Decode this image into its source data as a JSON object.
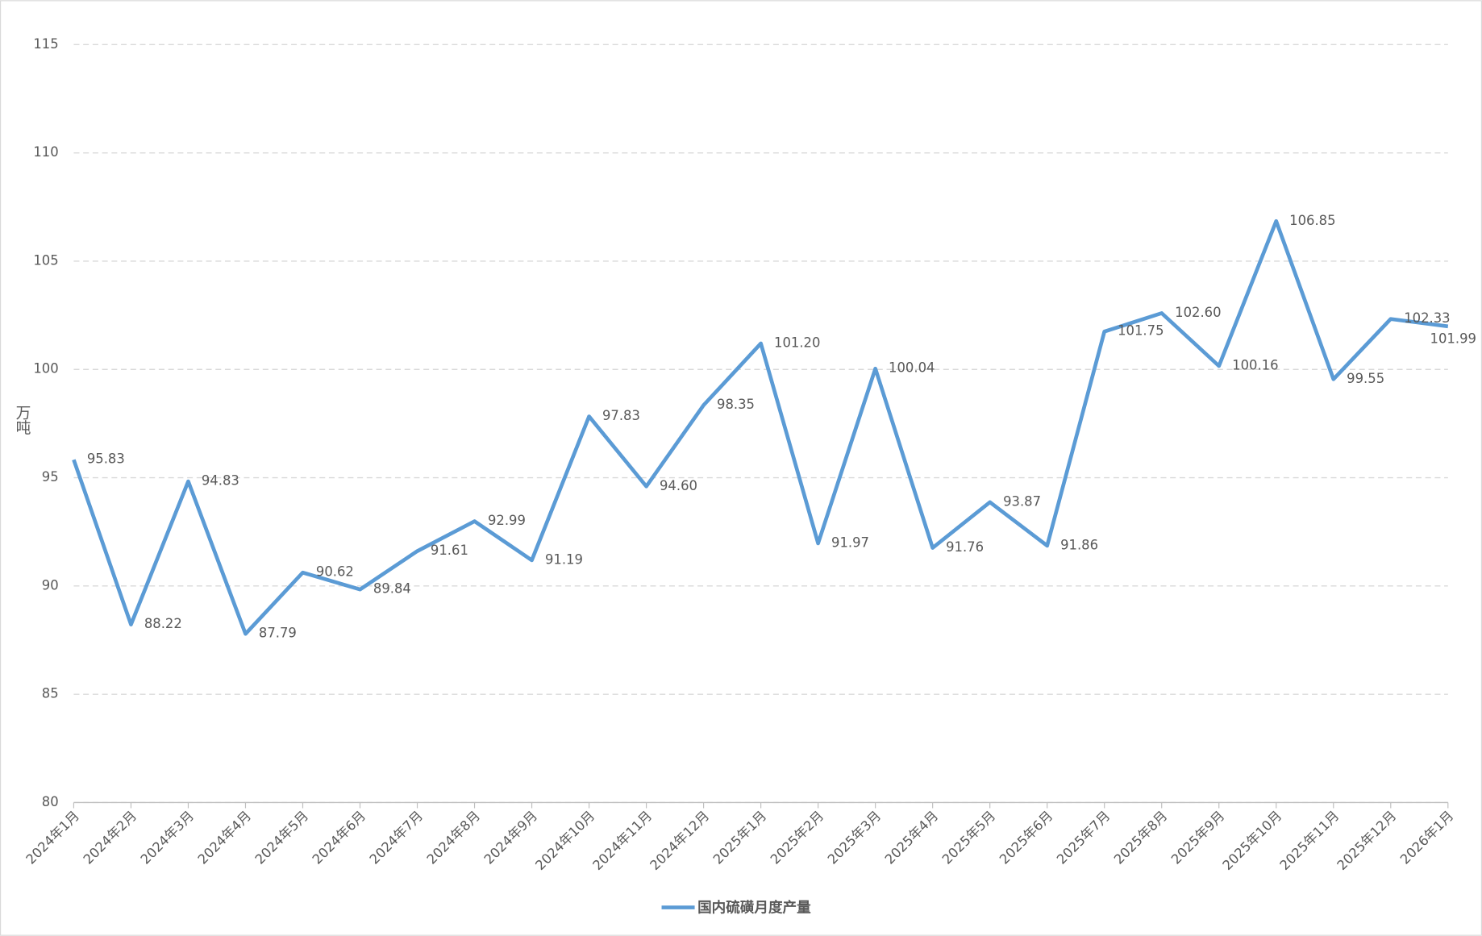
{
  "chart_data": {
    "type": "line",
    "y_label": "万吨",
    "categories": [
      "2024年1月",
      "2024年2月",
      "2024年3月",
      "2024年4月",
      "2024年5月",
      "2024年6月",
      "2024年7月",
      "2024年8月",
      "2024年9月",
      "2024年10月",
      "2024年11月",
      "2024年12月",
      "2025年1月",
      "2025年2月",
      "2025年3月",
      "2025年4月",
      "2025年5月",
      "2025年6月",
      "2025年7月",
      "2025年8月",
      "2025年9月",
      "2025年10月",
      "2025年11月",
      "2025年12月",
      "2026年1月"
    ],
    "series": [
      {
        "name": "国内硫磺月度产量",
        "color": "#5b9bd5",
        "values": [
          95.83,
          88.22,
          94.83,
          87.79,
          90.62,
          89.84,
          91.61,
          92.99,
          91.19,
          97.83,
          94.6,
          98.35,
          101.2,
          91.97,
          100.04,
          91.76,
          93.87,
          91.86,
          101.75,
          102.6,
          100.16,
          106.85,
          99.55,
          102.33,
          101.99
        ],
        "value_labels": [
          "95.83",
          "88.22",
          "94.83",
          "87.79",
          "90.62",
          "89.84",
          "91.61",
          "92.99",
          "91.19",
          "97.83",
          "94.60",
          "98.35",
          "101.20",
          "91.97",
          "100.04",
          "91.76",
          "93.87",
          "91.86",
          "101.75",
          "102.60",
          "100.16",
          "106.85",
          "99.55",
          "102.33",
          "101.99"
        ]
      }
    ],
    "ylim": [
      80,
      115
    ],
    "yticks": [
      80,
      85,
      90,
      95,
      100,
      105,
      110,
      115
    ],
    "grid": true,
    "legend": "bottom"
  }
}
